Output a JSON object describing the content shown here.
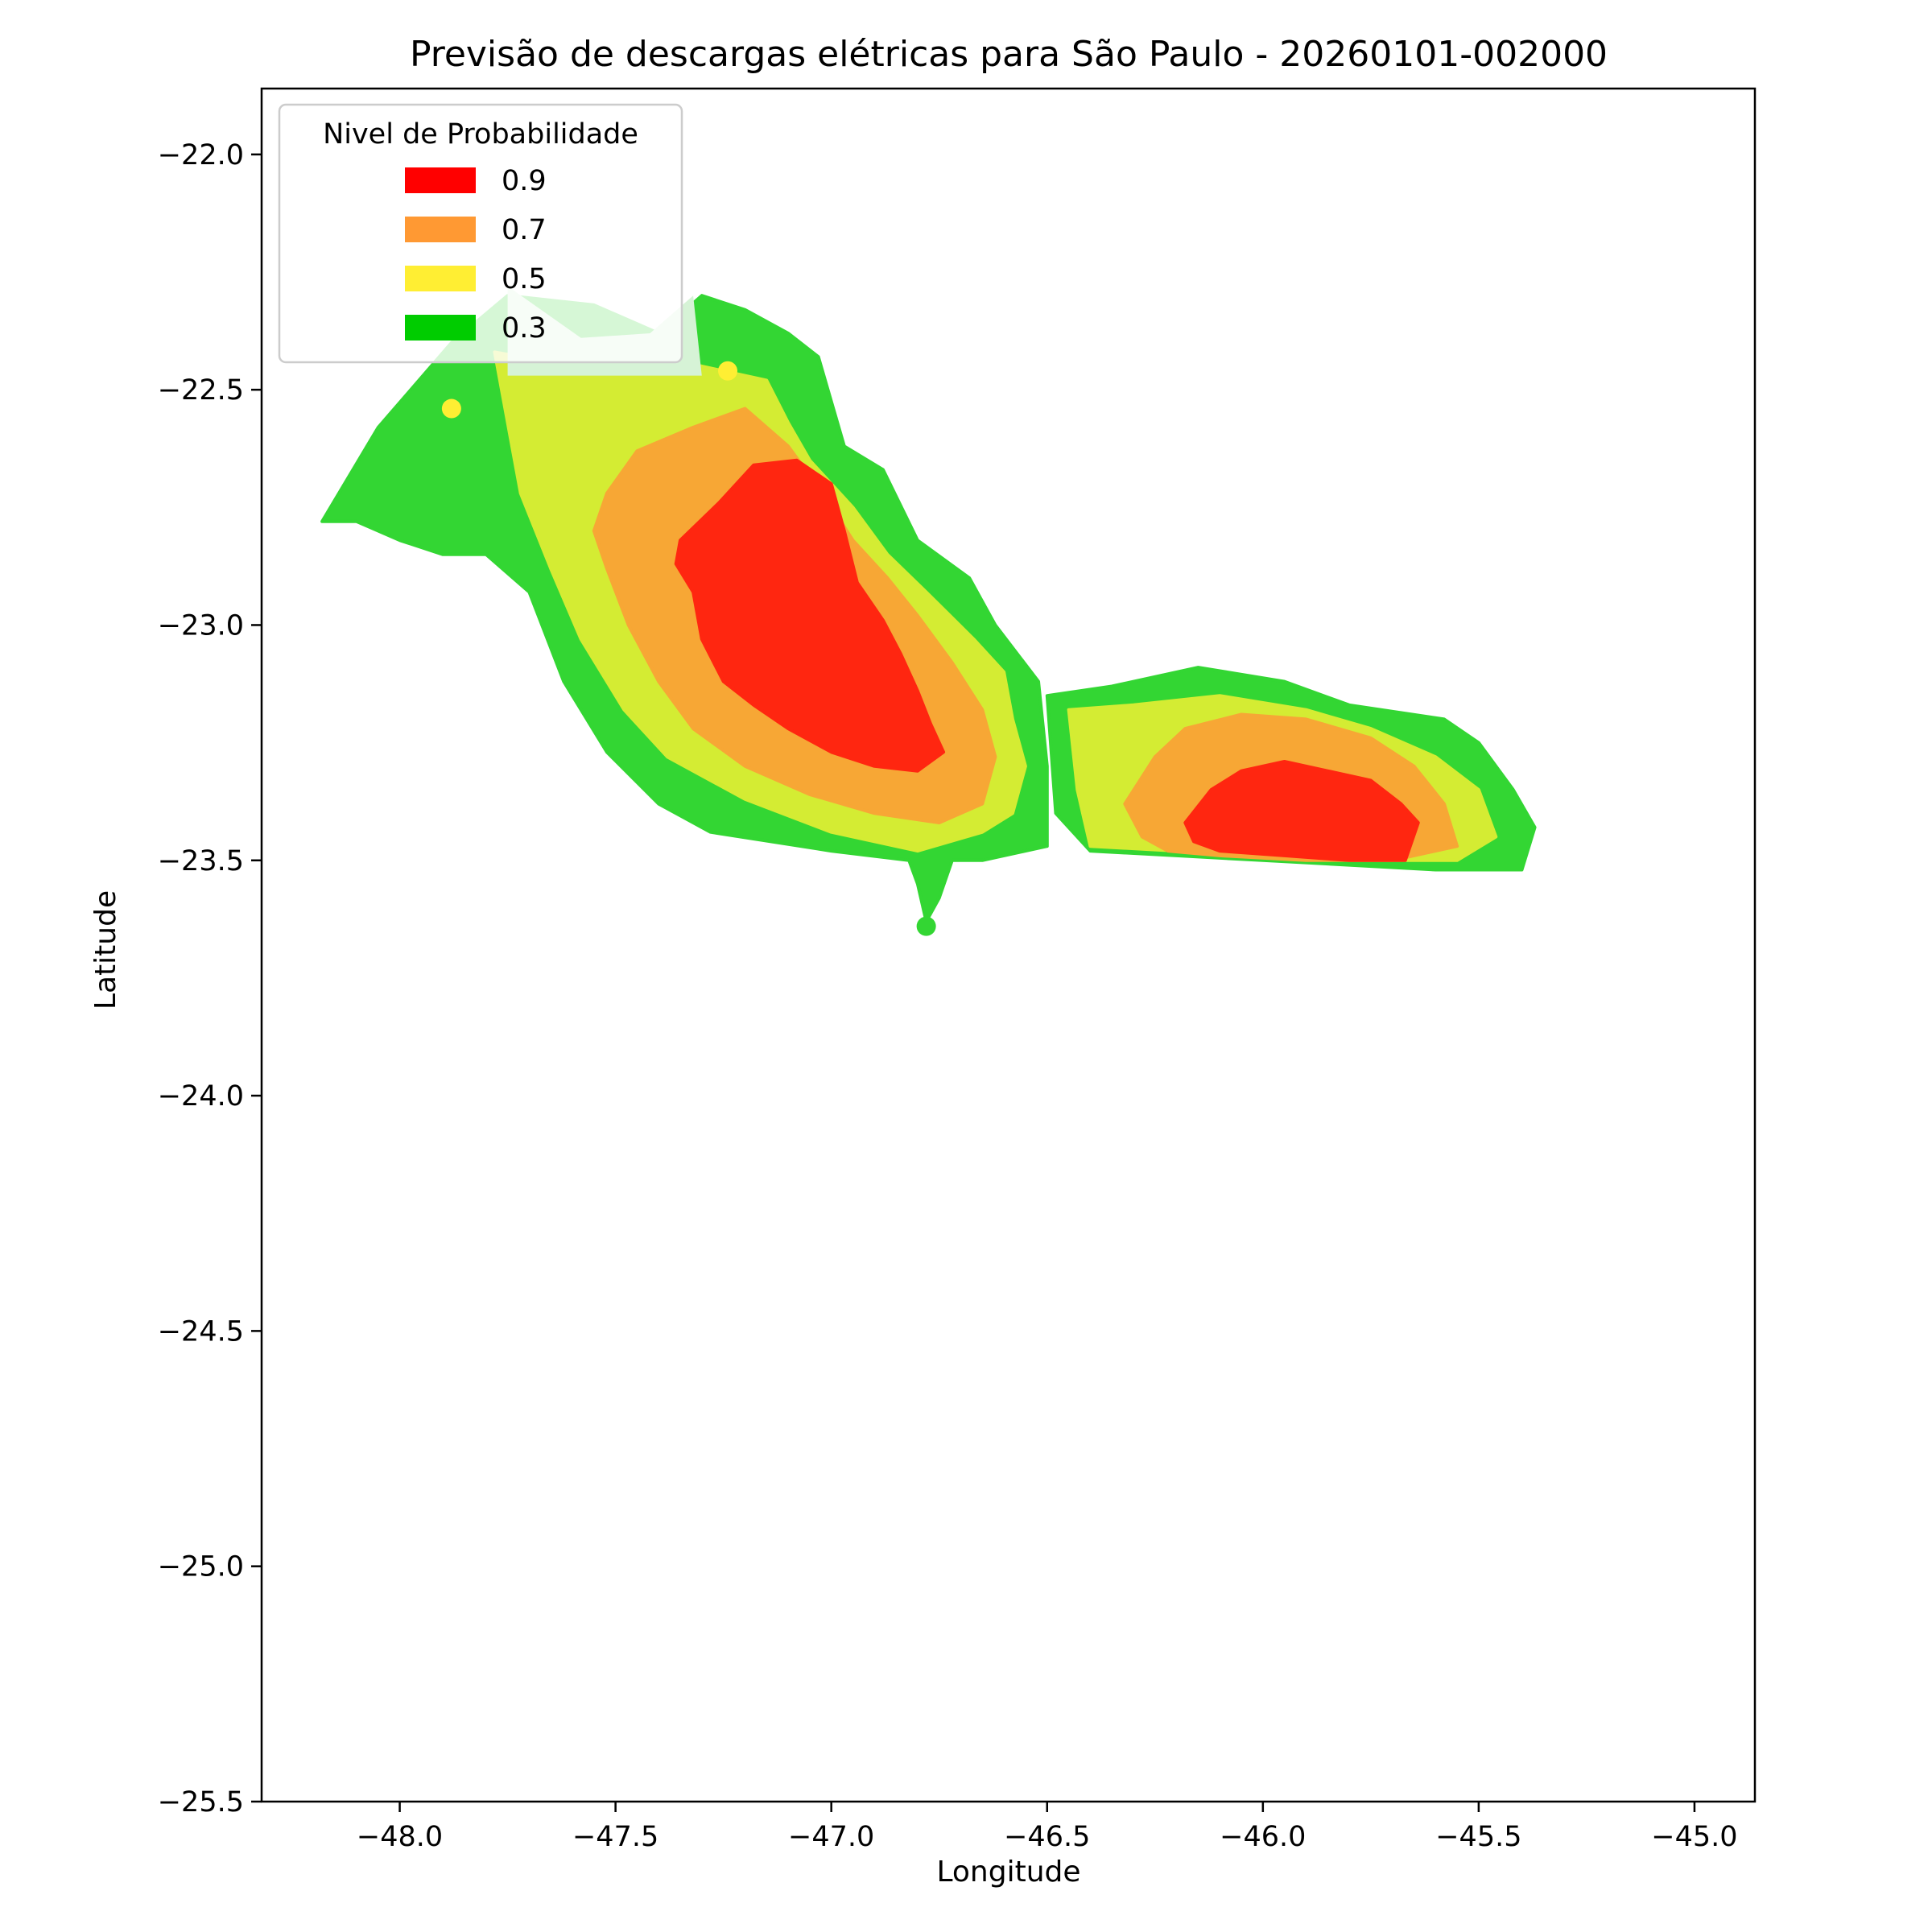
{
  "chart_data": {
    "type": "contour",
    "title": "Previsão de descargas elétricas para São Paulo - 20260101-002000",
    "xlabel": "Longitude",
    "ylabel": "Latitude",
    "xlim": [
      -48.32,
      -44.86
    ],
    "ylim": [
      -25.5,
      -21.86
    ],
    "xticks": [
      -48.0,
      -47.5,
      -47.0,
      -46.5,
      -46.0,
      -45.5,
      -45.0
    ],
    "xtick_labels": [
      "−48.0",
      "−47.5",
      "−47.0",
      "−46.5",
      "−46.0",
      "−45.5",
      "−45.0"
    ],
    "yticks": [
      -22.0,
      -22.5,
      -23.0,
      -23.5,
      -24.0,
      -24.5,
      -25.0,
      -25.5
    ],
    "ytick_labels": [
      "−22.0",
      "−22.5",
      "−23.0",
      "−23.5",
      "−24.0",
      "−24.5",
      "−25.0",
      "−25.5"
    ],
    "legend": {
      "title": "Nivel de Probabilidade",
      "placement": "upper left",
      "entries": [
        {
          "label": "0.9",
          "color": "#ff0000"
        },
        {
          "label": "0.7",
          "color": "#ff9933"
        },
        {
          "label": "0.5",
          "color": "#ffee33"
        },
        {
          "label": "0.3",
          "color": "#00cc00"
        }
      ]
    },
    "levels": [
      {
        "level": 0.3,
        "color": "#33d633",
        "regions": [
          [
            [
              -48.18,
              -22.78
            ],
            [
              -48.05,
              -22.58
            ],
            [
              -47.88,
              -22.4
            ],
            [
              -47.75,
              -22.3
            ],
            [
              -47.55,
              -22.32
            ],
            [
              -47.4,
              -22.38
            ],
            [
              -47.3,
              -22.3
            ],
            [
              -47.2,
              -22.33
            ],
            [
              -47.1,
              -22.38
            ],
            [
              -47.03,
              -22.43
            ],
            [
              -46.97,
              -22.62
            ],
            [
              -46.88,
              -22.67
            ],
            [
              -46.8,
              -22.82
            ],
            [
              -46.68,
              -22.9
            ],
            [
              -46.62,
              -23.0
            ],
            [
              -46.52,
              -23.12
            ],
            [
              -46.5,
              -23.3
            ],
            [
              -46.5,
              -23.47
            ],
            [
              -46.65,
              -23.5
            ],
            [
              -46.72,
              -23.5
            ],
            [
              -46.75,
              -23.58
            ],
            [
              -46.78,
              -23.63
            ],
            [
              -46.8,
              -23.55
            ],
            [
              -46.82,
              -23.5
            ],
            [
              -47.0,
              -23.48
            ],
            [
              -47.28,
              -23.44
            ],
            [
              -47.4,
              -23.38
            ],
            [
              -47.52,
              -23.27
            ],
            [
              -47.62,
              -23.12
            ],
            [
              -47.7,
              -22.93
            ],
            [
              -47.8,
              -22.85
            ],
            [
              -47.9,
              -22.85
            ],
            [
              -48.0,
              -22.82
            ],
            [
              -48.1,
              -22.78
            ]
          ],
          [
            [
              -46.5,
              -23.15
            ],
            [
              -46.35,
              -23.13
            ],
            [
              -46.15,
              -23.09
            ],
            [
              -45.95,
              -23.12
            ],
            [
              -45.8,
              -23.17
            ],
            [
              -45.58,
              -23.2
            ],
            [
              -45.5,
              -23.25
            ],
            [
              -45.42,
              -23.35
            ],
            [
              -45.37,
              -23.43
            ],
            [
              -45.4,
              -23.52
            ],
            [
              -45.6,
              -23.52
            ],
            [
              -45.8,
              -23.51
            ],
            [
              -46.0,
              -23.5
            ],
            [
              -46.2,
              -23.49
            ],
            [
              -46.4,
              -23.48
            ],
            [
              -46.48,
              -23.4
            ]
          ]
        ]
      },
      {
        "level": 0.5,
        "color": "#d4ec33",
        "regions": [
          [
            [
              -47.78,
              -22.42
            ],
            [
              -47.6,
              -22.45
            ],
            [
              -47.45,
              -22.43
            ],
            [
              -47.3,
              -22.45
            ],
            [
              -47.15,
              -22.48
            ],
            [
              -47.1,
              -22.57
            ],
            [
              -47.05,
              -22.65
            ],
            [
              -46.95,
              -22.75
            ],
            [
              -46.87,
              -22.85
            ],
            [
              -46.78,
              -22.93
            ],
            [
              -46.67,
              -23.03
            ],
            [
              -46.6,
              -23.1
            ],
            [
              -46.58,
              -23.2
            ],
            [
              -46.55,
              -23.3
            ],
            [
              -46.58,
              -23.4
            ],
            [
              -46.65,
              -23.44
            ],
            [
              -46.8,
              -23.48
            ],
            [
              -47.0,
              -23.44
            ],
            [
              -47.2,
              -23.37
            ],
            [
              -47.38,
              -23.28
            ],
            [
              -47.48,
              -23.18
            ],
            [
              -47.58,
              -23.03
            ],
            [
              -47.65,
              -22.88
            ],
            [
              -47.72,
              -22.72
            ]
          ],
          [
            [
              -46.45,
              -23.18
            ],
            [
              -46.3,
              -23.17
            ],
            [
              -46.1,
              -23.15
            ],
            [
              -45.9,
              -23.18
            ],
            [
              -45.75,
              -23.22
            ],
            [
              -45.6,
              -23.28
            ],
            [
              -45.5,
              -23.35
            ],
            [
              -45.46,
              -23.45
            ],
            [
              -45.55,
              -23.5
            ],
            [
              -45.8,
              -23.5
            ],
            [
              -46.0,
              -23.49
            ],
            [
              -46.2,
              -23.48
            ],
            [
              -46.4,
              -23.47
            ],
            [
              -46.43,
              -23.35
            ]
          ]
        ]
      },
      {
        "level": 0.7,
        "color": "#f7a735",
        "regions": [
          [
            [
              -47.52,
              -22.72
            ],
            [
              -47.45,
              -22.63
            ],
            [
              -47.32,
              -22.58
            ],
            [
              -47.2,
              -22.54
            ],
            [
              -47.1,
              -22.62
            ],
            [
              -47.02,
              -22.72
            ],
            [
              -46.95,
              -22.82
            ],
            [
              -46.87,
              -22.9
            ],
            [
              -46.8,
              -22.98
            ],
            [
              -46.72,
              -23.08
            ],
            [
              -46.65,
              -23.18
            ],
            [
              -46.62,
              -23.28
            ],
            [
              -46.65,
              -23.38
            ],
            [
              -46.75,
              -23.42
            ],
            [
              -46.9,
              -23.4
            ],
            [
              -47.05,
              -23.36
            ],
            [
              -47.2,
              -23.3
            ],
            [
              -47.32,
              -23.22
            ],
            [
              -47.4,
              -23.12
            ],
            [
              -47.47,
              -23.0
            ],
            [
              -47.52,
              -22.88
            ],
            [
              -47.55,
              -22.8
            ]
          ],
          [
            [
              -46.28,
              -23.45
            ],
            [
              -46.32,
              -23.38
            ],
            [
              -46.25,
              -23.28
            ],
            [
              -46.18,
              -23.22
            ],
            [
              -46.05,
              -23.19
            ],
            [
              -45.9,
              -23.2
            ],
            [
              -45.75,
              -23.24
            ],
            [
              -45.65,
              -23.3
            ],
            [
              -45.58,
              -23.38
            ],
            [
              -45.55,
              -23.47
            ],
            [
              -45.7,
              -23.5
            ],
            [
              -45.9,
              -23.5
            ],
            [
              -46.1,
              -23.49
            ],
            [
              -46.22,
              -23.48
            ]
          ]
        ]
      },
      {
        "level": 0.9,
        "color": "#ff2610",
        "regions": [
          [
            [
              -47.35,
              -22.82
            ],
            [
              -47.26,
              -22.74
            ],
            [
              -47.18,
              -22.66
            ],
            [
              -47.08,
              -22.65
            ],
            [
              -47.0,
              -22.7
            ],
            [
              -46.97,
              -22.8
            ],
            [
              -46.94,
              -22.91
            ],
            [
              -46.88,
              -22.99
            ],
            [
              -46.84,
              -23.06
            ],
            [
              -46.8,
              -23.14
            ],
            [
              -46.77,
              -23.21
            ],
            [
              -46.74,
              -23.27
            ],
            [
              -46.8,
              -23.31
            ],
            [
              -46.9,
              -23.3
            ],
            [
              -47.0,
              -23.27
            ],
            [
              -47.1,
              -23.22
            ],
            [
              -47.18,
              -23.17
            ],
            [
              -47.25,
              -23.12
            ],
            [
              -47.3,
              -23.03
            ],
            [
              -47.32,
              -22.93
            ],
            [
              -47.36,
              -22.87
            ]
          ],
          [
            [
              -46.18,
              -23.42
            ],
            [
              -46.12,
              -23.35
            ],
            [
              -46.05,
              -23.31
            ],
            [
              -45.95,
              -23.29
            ],
            [
              -45.85,
              -23.31
            ],
            [
              -45.75,
              -23.33
            ],
            [
              -45.68,
              -23.38
            ],
            [
              -45.64,
              -23.42
            ],
            [
              -45.67,
              -23.5
            ],
            [
              -45.8,
              -23.5
            ],
            [
              -45.95,
              -23.49
            ],
            [
              -46.1,
              -23.48
            ],
            [
              -46.16,
              -23.46
            ]
          ]
        ]
      }
    ],
    "overlays": [
      {
        "note": "legend_shadow",
        "color": "#d6f3d6",
        "region": [
          [
            -47.75,
            -22.28
          ],
          [
            -47.58,
            -22.39
          ],
          [
            -47.42,
            -22.38
          ],
          [
            -47.32,
            -22.3
          ],
          [
            -47.3,
            -22.47
          ],
          [
            -47.75,
            -22.47
          ]
        ]
      }
    ],
    "points": [
      {
        "x": -47.88,
        "y": -22.54,
        "color": "#ffee33"
      },
      {
        "x": -47.24,
        "y": -22.46,
        "color": "#ffee33"
      },
      {
        "x": -46.78,
        "y": -23.64,
        "color": "#33d633"
      }
    ]
  }
}
